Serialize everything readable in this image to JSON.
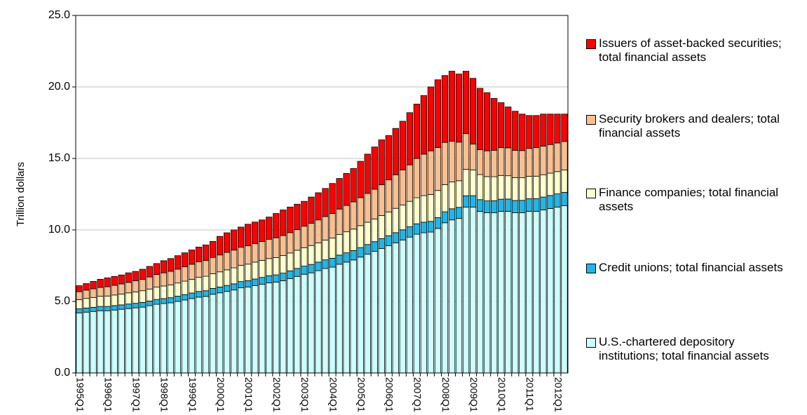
{
  "chart_data": {
    "type": "stacked-bar",
    "y_label": "Trillion dollars",
    "categories": [
      "1995Q1",
      null,
      null,
      null,
      "1996Q1",
      null,
      null,
      null,
      "1997Q1",
      null,
      null,
      null,
      "1998Q1",
      null,
      null,
      null,
      "1999Q1",
      null,
      null,
      null,
      "2000Q1",
      null,
      null,
      null,
      "2001Q1",
      null,
      null,
      null,
      "2002Q1",
      null,
      null,
      null,
      "2003Q1",
      null,
      null,
      null,
      "2004Q1",
      null,
      null,
      null,
      "2005Q1",
      null,
      null,
      null,
      "2006Q1",
      null,
      null,
      null,
      "2007Q1",
      null,
      null,
      null,
      "2008Q1",
      null,
      null,
      null,
      "2009Q1",
      null,
      null,
      null,
      "2010Q1",
      null,
      null,
      null,
      "2011Q1",
      null,
      null,
      null,
      "2012Q1",
      null
    ],
    "series": [
      {
        "name": "U.S.-chartered depository institutions; total financial assets",
        "color": "#ccffff",
        "values": [
          4.2,
          4.25,
          4.3,
          4.35,
          4.35,
          4.4,
          4.45,
          4.5,
          4.55,
          4.6,
          4.7,
          4.8,
          4.85,
          4.9,
          5.0,
          5.1,
          5.2,
          5.3,
          5.35,
          5.5,
          5.6,
          5.7,
          5.8,
          5.95,
          6.0,
          6.1,
          6.2,
          6.3,
          6.35,
          6.45,
          6.6,
          6.75,
          6.9,
          7.0,
          7.15,
          7.3,
          7.4,
          7.6,
          7.75,
          7.9,
          8.1,
          8.3,
          8.5,
          8.7,
          8.9,
          9.1,
          9.3,
          9.5,
          9.7,
          9.8,
          9.85,
          10.1,
          10.5,
          10.7,
          10.8,
          11.6,
          11.6,
          11.3,
          11.2,
          11.2,
          11.3,
          11.3,
          11.2,
          11.2,
          11.3,
          11.3,
          11.4,
          11.5,
          11.6,
          11.7
        ]
      },
      {
        "name": "Credit unions; total financial assets",
        "color": "#21b6e6",
        "values": [
          0.28,
          0.29,
          0.29,
          0.3,
          0.3,
          0.31,
          0.31,
          0.32,
          0.32,
          0.33,
          0.33,
          0.34,
          0.35,
          0.36,
          0.37,
          0.38,
          0.39,
          0.4,
          0.4,
          0.41,
          0.41,
          0.42,
          0.43,
          0.44,
          0.45,
          0.47,
          0.48,
          0.5,
          0.51,
          0.53,
          0.54,
          0.56,
          0.57,
          0.59,
          0.6,
          0.61,
          0.62,
          0.64,
          0.65,
          0.66,
          0.67,
          0.68,
          0.68,
          0.69,
          0.7,
          0.71,
          0.71,
          0.72,
          0.73,
          0.74,
          0.75,
          0.76,
          0.77,
          0.78,
          0.78,
          0.79,
          0.8,
          0.82,
          0.83,
          0.84,
          0.85,
          0.86,
          0.86,
          0.87,
          0.88,
          0.89,
          0.9,
          0.91,
          0.92,
          0.93
        ]
      },
      {
        "name": "Finance companies; total financial assets",
        "color": "#ffffcc",
        "values": [
          0.65,
          0.67,
          0.69,
          0.71,
          0.73,
          0.74,
          0.76,
          0.78,
          0.8,
          0.82,
          0.84,
          0.86,
          0.88,
          0.9,
          0.92,
          0.94,
          0.96,
          0.99,
          1.01,
          1.03,
          1.06,
          1.09,
          1.12,
          1.14,
          1.16,
          1.18,
          1.19,
          1.2,
          1.21,
          1.23,
          1.25,
          1.27,
          1.29,
          1.32,
          1.35,
          1.38,
          1.41,
          1.44,
          1.47,
          1.5,
          1.53,
          1.56,
          1.59,
          1.62,
          1.66,
          1.7,
          1.74,
          1.78,
          1.82,
          1.86,
          1.88,
          1.9,
          1.9,
          1.88,
          1.86,
          1.85,
          1.8,
          1.75,
          1.7,
          1.68,
          1.66,
          1.63,
          1.6,
          1.58,
          1.57,
          1.57,
          1.56,
          1.56,
          1.56,
          1.56
        ]
      },
      {
        "name": "Security brokers and dealers; total financial assets",
        "color": "#fbbf8f",
        "values": [
          0.55,
          0.58,
          0.6,
          0.62,
          0.65,
          0.68,
          0.7,
          0.73,
          0.77,
          0.8,
          0.84,
          0.88,
          0.92,
          0.95,
          0.97,
          1.0,
          1.05,
          1.08,
          1.1,
          1.14,
          1.18,
          1.22,
          1.24,
          1.26,
          1.28,
          1.3,
          1.32,
          1.35,
          1.38,
          1.4,
          1.42,
          1.45,
          1.5,
          1.55,
          1.6,
          1.65,
          1.72,
          1.78,
          1.84,
          1.9,
          1.96,
          2.02,
          2.08,
          2.15,
          2.25,
          2.35,
          2.45,
          2.55,
          2.75,
          2.9,
          3.05,
          3.0,
          2.95,
          2.85,
          2.7,
          2.5,
          1.8,
          1.75,
          1.8,
          1.85,
          1.95,
          1.95,
          1.9,
          1.9,
          1.95,
          2.0,
          2.0,
          2.0,
          2.0,
          2.0
        ]
      },
      {
        "name": "Issuers of asset-backed securities; total financial assets",
        "color": "#ff0000",
        "values": [
          0.42,
          0.46,
          0.52,
          0.57,
          0.62,
          0.62,
          0.63,
          0.67,
          0.66,
          0.7,
          0.74,
          0.77,
          0.85,
          0.89,
          0.94,
          0.98,
          1.0,
          1.03,
          1.09,
          1.12,
          1.3,
          1.37,
          1.41,
          1.41,
          1.51,
          1.5,
          1.51,
          1.55,
          1.7,
          1.79,
          1.79,
          1.77,
          1.74,
          1.84,
          1.9,
          1.96,
          2.1,
          2.14,
          2.24,
          2.34,
          2.54,
          2.74,
          2.95,
          3.14,
          3.09,
          3.24,
          3.4,
          3.65,
          3.8,
          4.1,
          4.47,
          4.74,
          4.68,
          4.89,
          4.76,
          4.36,
          4.6,
          4.28,
          4.07,
          3.63,
          3.14,
          2.86,
          2.74,
          2.55,
          2.3,
          2.24,
          2.24,
          2.13,
          2.02,
          1.91
        ]
      }
    ],
    "ylim": [
      0,
      25
    ],
    "yticks": [
      {
        "value": 0,
        "label": "0.0"
      },
      {
        "value": 5,
        "label": "5.0"
      },
      {
        "value": 10,
        "label": "10.0"
      },
      {
        "value": 15,
        "label": "15.0"
      },
      {
        "value": 20,
        "label": "20.0"
      },
      {
        "value": 25,
        "label": "25.0"
      }
    ],
    "grid": true
  }
}
